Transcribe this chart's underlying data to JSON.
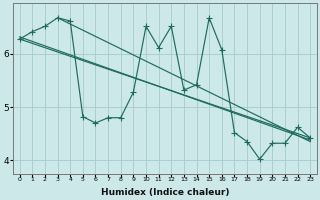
{
  "xlabel": "Humidex (Indice chaleur)",
  "bg_color": "#cce8e8",
  "line_color": "#1e6b5e",
  "grid_color": "#aacfcf",
  "x_data": [
    0,
    1,
    2,
    3,
    4,
    5,
    6,
    7,
    8,
    9,
    10,
    11,
    12,
    13,
    14,
    15,
    16,
    17,
    18,
    19,
    20,
    21,
    22,
    23
  ],
  "line1": [
    6.28,
    6.42,
    6.52,
    6.68,
    6.62,
    4.82,
    4.7,
    4.8,
    4.8,
    5.28,
    6.52,
    6.12,
    6.52,
    5.32,
    5.42,
    6.68,
    6.08,
    4.52,
    4.35,
    4.02,
    4.32,
    4.32,
    4.62,
    4.42
  ],
  "trend1_x": [
    0,
    23
  ],
  "trend1_y": [
    6.28,
    4.42
  ],
  "trend2_x": [
    0,
    23
  ],
  "trend2_y": [
    6.32,
    4.38
  ],
  "trend3_x": [
    3,
    23
  ],
  "trend3_y": [
    6.68,
    4.35
  ],
  "ylim": [
    3.75,
    6.95
  ],
  "yticks": [
    4,
    5,
    6
  ],
  "xlim": [
    -0.5,
    23.5
  ]
}
